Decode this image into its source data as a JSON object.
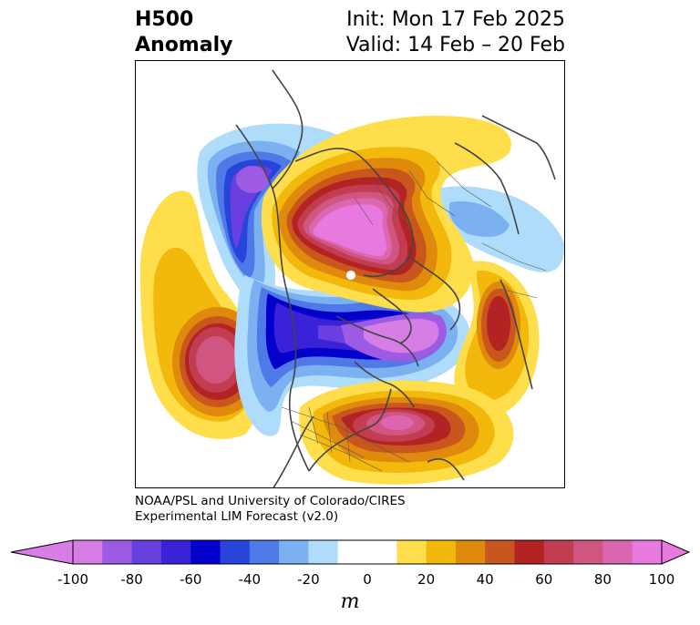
{
  "header": {
    "field": "H500",
    "type": "Anomaly",
    "init": "Init: Mon 17 Feb 2025",
    "valid": "Valid: 14 Feb – 20 Feb"
  },
  "credit": {
    "line1": "NOAA/PSL and University of Colorado/CIRES",
    "line2": "Experimental LIM Forecast (v2.0)"
  },
  "colorbar": {
    "unit": "m",
    "ticks": [
      "-100",
      "-80",
      "-60",
      "-40",
      "-20",
      "0",
      "20",
      "40",
      "60",
      "80",
      "100"
    ],
    "colors": [
      "#d77ee6",
      "#9d5ae3",
      "#6a3fe0",
      "#3a22d8",
      "#0400cc",
      "#2744db",
      "#4f79e6",
      "#7bb1f0",
      "#b0dcfb",
      "#ffffff",
      "#ffffff",
      "#fedf4b",
      "#f2b80b",
      "#df8a0c",
      "#c9561c",
      "#b32323",
      "#c23c52",
      "#d05681",
      "#dc67b0",
      "#e779df"
    ],
    "extend_low_color": "#d77ee6",
    "extend_high_color": "#e779df"
  }
}
